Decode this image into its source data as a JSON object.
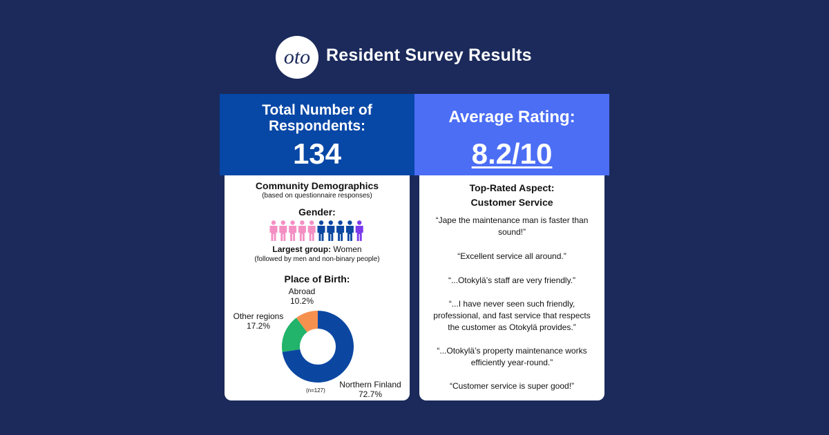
{
  "header": {
    "logo_text": "oto",
    "title": "Resident Survey Results"
  },
  "kpis": {
    "respondents_label": "Total Number of Respondents:",
    "respondents_value": "134",
    "rating_label": "Average Rating:",
    "rating_value": "8.2/10"
  },
  "demographics": {
    "title": "Community Demographics",
    "subtitle": "(based on questionnaire responses)",
    "gender_title": "Gender:",
    "gender_icons": [
      "women",
      "women",
      "women",
      "women",
      "women",
      "men",
      "men",
      "men",
      "men",
      "non-binary"
    ],
    "largest_label": "Largest group:",
    "largest_value": " Women",
    "largest_note": "(followed by men and non-binary people)",
    "place_of_birth_title": "Place of Birth:",
    "n_label": "(n=127)"
  },
  "colors": {
    "background": "#1b2a5b",
    "kpi_left": "#0747a6",
    "kpi_right": "#4c6ef5",
    "women": "#f48fc4",
    "men": "#0b47a1",
    "non_binary": "#7c3aed"
  },
  "chart_data": {
    "type": "pie",
    "title": "Place of Birth:",
    "categories": [
      "Northern Finland",
      "Other regions",
      "Abroad"
    ],
    "values": [
      72.7,
      17.2,
      10.2
    ],
    "value_labels": [
      "72.7%",
      "17.2%",
      "10.2%"
    ],
    "colors": [
      "#0b47a1",
      "#21b46a",
      "#f6904f"
    ],
    "donut": true,
    "note": "(n=127)"
  },
  "top_rated": {
    "title_line1": "Top-Rated Aspect:",
    "title_line2": "Customer Service",
    "quotes": [
      "“Jape the maintenance man is faster than sound!”",
      "“Excellent service all around.”",
      "“...Otokylä’s staff are very friendly.”",
      "“...I have never seen such friendly, professional, and fast service that respects the customer as Otokylä provides.”",
      "“...Otokylä’s property maintenance works efficiently year-round.”",
      "“Customer service is super good!”"
    ]
  }
}
